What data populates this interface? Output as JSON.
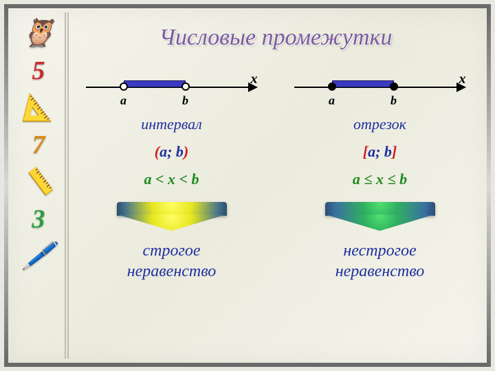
{
  "title": "Числовые промежутки",
  "sidebar_icons": [
    {
      "name": "owl-icon",
      "glyph": "🦉",
      "color": "#8a4a2a"
    },
    {
      "name": "digit-5-icon",
      "glyph": "5",
      "color": "#cc2e2e"
    },
    {
      "name": "set-square-icon",
      "glyph": "📐",
      "color": "#c9a050"
    },
    {
      "name": "digit-7-icon",
      "glyph": "7",
      "color": "#d68a1e"
    },
    {
      "name": "compass-icon",
      "glyph": "📏",
      "color": "#808080"
    },
    {
      "name": "digit-3-icon",
      "glyph": "3",
      "color": "#2e9e3e"
    },
    {
      "name": "pencil-cup-icon",
      "glyph": "🖊️",
      "color": "#3a6aa0"
    }
  ],
  "left": {
    "axis": {
      "x_label": "x",
      "a_label": "a",
      "b_label": "b",
      "segment_color": "#3a3ac0",
      "point_style": "open",
      "a_pos_pct": 22,
      "b_pos_pct": 58
    },
    "type_label": "интервал",
    "type_color": "#1f2fa0",
    "notation": {
      "open": "(",
      "a": "a",
      "sep": "; ",
      "b": "b",
      "close": ")",
      "bracket_color": "#d01818",
      "var_color": "#1f2fa0"
    },
    "inequality": "a < x < b",
    "inequality_color": "#1e8a1e",
    "arrow_gradient": "yellow",
    "conclusion_line1": "строгое",
    "conclusion_line2": "неравенство",
    "conclusion_color": "#1f2fa0"
  },
  "right": {
    "axis": {
      "x_label": "x",
      "a_label": "a",
      "b_label": "b",
      "segment_color": "#3a3ac0",
      "point_style": "filled",
      "a_pos_pct": 22,
      "b_pos_pct": 58
    },
    "type_label": "отрезок",
    "type_color": "#1f2fa0",
    "notation": {
      "open": "[",
      "a": "a",
      "sep": "; ",
      "b": "b",
      "close": "]",
      "bracket_color": "#d01818",
      "var_color": "#1f2fa0"
    },
    "inequality": "a ≤ x ≤ b",
    "inequality_color": "#1e8a1e",
    "arrow_gradient": "green",
    "conclusion_line1": "нестрогое",
    "conclusion_line2": "неравенство",
    "conclusion_color": "#1f2fa0"
  }
}
